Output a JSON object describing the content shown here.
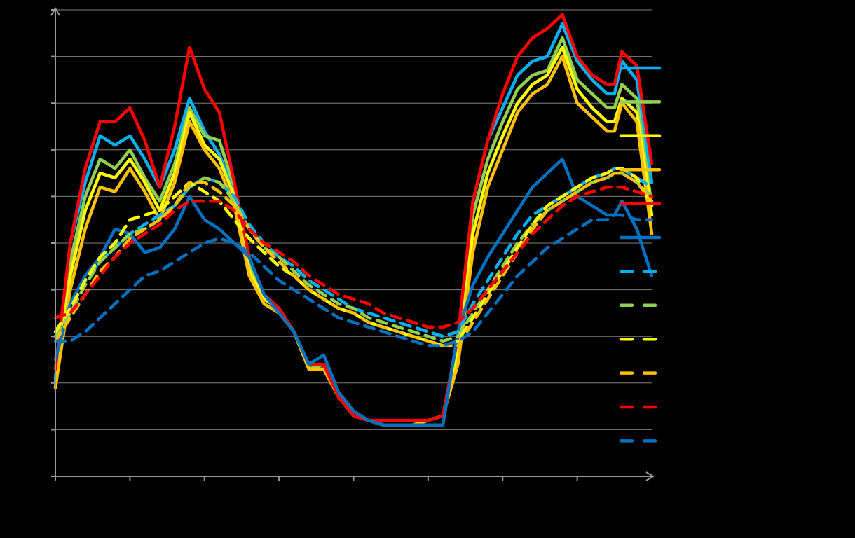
{
  "chart_data": {
    "type": "line",
    "title": "",
    "xlabel": "",
    "ylabel": "",
    "grid": true,
    "legend_position": "right",
    "x": [
      0,
      2,
      4,
      6,
      8,
      10,
      12,
      14,
      16,
      18,
      20,
      22,
      24,
      26,
      28,
      30,
      32,
      34,
      36,
      38,
      40,
      42,
      44,
      46,
      48,
      50,
      52,
      54,
      56,
      58,
      60,
      62,
      64,
      66,
      68,
      70,
      72,
      74,
      75,
      76,
      78,
      80
    ],
    "series": [
      {
        "color": "#00b0f0",
        "dash": false,
        "values": [
          2.1,
          5.0,
          6.3,
          7.3,
          7.1,
          7.3,
          6.8,
          6.2,
          7.0,
          8.1,
          7.4,
          6.9,
          6.1,
          4.6,
          3.8,
          3.6,
          3.1,
          2.4,
          2.4,
          1.7,
          1.3,
          1.2,
          1.1,
          1.1,
          1.1,
          1.2,
          1.3,
          3.0,
          5.9,
          7.2,
          7.9,
          8.6,
          8.9,
          9.0,
          9.7,
          8.9,
          8.5,
          8.2,
          8.2,
          8.9,
          8.5,
          6.3
        ]
      },
      {
        "color": "#92d050",
        "dash": false,
        "values": [
          2.0,
          4.6,
          6.0,
          6.8,
          6.6,
          7.0,
          6.4,
          5.9,
          6.7,
          7.9,
          7.3,
          7.2,
          6.2,
          4.5,
          3.8,
          3.6,
          3.1,
          2.3,
          2.4,
          1.7,
          1.3,
          1.2,
          1.1,
          1.1,
          1.1,
          1.2,
          1.3,
          2.8,
          5.6,
          6.8,
          7.6,
          8.3,
          8.6,
          8.7,
          9.4,
          8.5,
          8.2,
          7.9,
          7.9,
          8.4,
          8.1,
          5.8
        ]
      },
      {
        "color": "#ffff00",
        "dash": false,
        "values": [
          1.9,
          4.3,
          5.7,
          6.5,
          6.4,
          6.8,
          6.3,
          5.7,
          6.5,
          7.8,
          7.1,
          6.8,
          6.0,
          4.4,
          3.8,
          3.6,
          3.1,
          2.3,
          2.3,
          1.7,
          1.3,
          1.2,
          1.1,
          1.1,
          1.1,
          1.2,
          1.3,
          2.6,
          5.2,
          6.5,
          7.3,
          8.0,
          8.4,
          8.6,
          9.2,
          8.3,
          7.9,
          7.6,
          7.6,
          8.1,
          7.8,
          5.6
        ]
      },
      {
        "color": "#ffc000",
        "dash": false,
        "values": [
          1.9,
          4.0,
          5.3,
          6.2,
          6.1,
          6.6,
          6.1,
          5.5,
          6.3,
          7.6,
          7.0,
          6.6,
          5.8,
          4.3,
          3.7,
          3.5,
          3.1,
          2.3,
          2.3,
          1.7,
          1.3,
          1.2,
          1.1,
          1.1,
          1.1,
          1.2,
          1.3,
          2.4,
          4.8,
          6.2,
          7.0,
          7.8,
          8.2,
          8.4,
          9.0,
          8.0,
          7.7,
          7.4,
          7.4,
          8.0,
          7.6,
          5.2
        ]
      },
      {
        "color": "#ff0000",
        "dash": false,
        "values": [
          2.3,
          5.0,
          6.6,
          7.6,
          7.6,
          7.9,
          7.2,
          6.2,
          7.5,
          9.2,
          8.3,
          7.8,
          6.3,
          4.7,
          3.9,
          3.6,
          3.1,
          2.4,
          2.4,
          1.7,
          1.3,
          1.2,
          1.2,
          1.2,
          1.2,
          1.2,
          1.3,
          3.0,
          5.9,
          7.2,
          8.2,
          9.0,
          9.4,
          9.6,
          9.9,
          9.0,
          8.6,
          8.4,
          8.4,
          9.1,
          8.8,
          6.7
        ]
      },
      {
        "color": "#0070c0",
        "dash": false,
        "values": [
          2.5,
          3.7,
          4.3,
          4.7,
          5.3,
          5.2,
          4.8,
          4.9,
          5.3,
          6.0,
          5.5,
          5.3,
          5.0,
          4.7,
          3.9,
          3.5,
          3.1,
          2.4,
          2.6,
          1.8,
          1.4,
          1.2,
          1.1,
          1.1,
          1.1,
          1.1,
          1.1,
          3.1,
          4.1,
          4.7,
          5.2,
          5.7,
          6.2,
          6.5,
          6.8,
          6.0,
          5.8,
          5.6,
          5.6,
          5.9,
          5.3,
          4.3
        ]
      },
      {
        "color": "#00b0f0",
        "dash": true,
        "values": [
          3.1,
          3.6,
          4.2,
          4.6,
          4.9,
          5.2,
          5.4,
          5.6,
          5.8,
          6.2,
          6.4,
          6.3,
          6.0,
          5.4,
          5.0,
          4.7,
          4.5,
          4.2,
          4.0,
          3.8,
          3.6,
          3.5,
          3.4,
          3.3,
          3.2,
          3.1,
          3.0,
          3.1,
          3.7,
          4.2,
          4.7,
          5.2,
          5.6,
          5.8,
          6.0,
          6.2,
          6.4,
          6.5,
          6.6,
          6.6,
          6.4,
          6.2
        ]
      },
      {
        "color": "#92d050",
        "dash": true,
        "values": [
          3.0,
          3.5,
          4.1,
          4.6,
          4.9,
          5.2,
          5.3,
          5.5,
          5.8,
          6.2,
          6.4,
          6.3,
          5.9,
          5.3,
          4.9,
          4.7,
          4.4,
          4.1,
          3.9,
          3.7,
          3.6,
          3.4,
          3.3,
          3.2,
          3.1,
          3.0,
          2.9,
          3.0,
          3.5,
          4.0,
          4.5,
          5.0,
          5.4,
          5.7,
          5.9,
          6.1,
          6.3,
          6.4,
          6.5,
          6.5,
          6.3,
          6.0
        ]
      },
      {
        "color": "#ffff00",
        "dash": true,
        "values": [
          3.1,
          3.6,
          4.2,
          4.7,
          5.0,
          5.5,
          5.6,
          5.7,
          6.0,
          6.3,
          6.1,
          5.9,
          5.5,
          5.1,
          4.8,
          4.5,
          4.3,
          4.0,
          3.8,
          3.6,
          3.5,
          3.3,
          3.2,
          3.1,
          3.0,
          2.9,
          2.8,
          2.9,
          3.4,
          3.9,
          4.4,
          4.9,
          5.4,
          5.8,
          6.0,
          6.2,
          6.4,
          6.5,
          6.6,
          6.6,
          6.4,
          5.8
        ]
      },
      {
        "color": "#ffc000",
        "dash": true,
        "values": [
          2.9,
          3.4,
          3.9,
          4.4,
          4.7,
          5.1,
          5.3,
          5.5,
          5.8,
          6.3,
          6.3,
          6.1,
          5.8,
          5.3,
          4.9,
          4.6,
          4.3,
          4.0,
          3.8,
          3.6,
          3.5,
          3.3,
          3.2,
          3.1,
          3.0,
          2.9,
          2.8,
          2.8,
          3.3,
          3.8,
          4.3,
          4.8,
          5.3,
          5.7,
          5.9,
          6.1,
          6.3,
          6.4,
          6.5,
          6.5,
          6.3,
          5.9
        ]
      },
      {
        "color": "#ff0000",
        "dash": true,
        "values": [
          3.4,
          3.5,
          3.9,
          4.3,
          4.7,
          5.0,
          5.2,
          5.4,
          5.7,
          5.9,
          5.9,
          5.9,
          5.7,
          5.3,
          5.0,
          4.8,
          4.6,
          4.3,
          4.1,
          3.9,
          3.8,
          3.7,
          3.5,
          3.4,
          3.3,
          3.2,
          3.2,
          3.3,
          3.6,
          4.0,
          4.4,
          4.8,
          5.2,
          5.5,
          5.8,
          6.0,
          6.1,
          6.2,
          6.2,
          6.2,
          6.1,
          6.0
        ]
      },
      {
        "color": "#0070c0",
        "dash": true,
        "values": [
          2.9,
          2.9,
          3.1,
          3.4,
          3.7,
          4.0,
          4.3,
          4.4,
          4.6,
          4.8,
          5.0,
          5.1,
          5.0,
          4.8,
          4.5,
          4.2,
          4.0,
          3.8,
          3.6,
          3.4,
          3.3,
          3.2,
          3.1,
          3.0,
          2.9,
          2.8,
          2.8,
          2.9,
          3.1,
          3.5,
          3.9,
          4.3,
          4.6,
          4.9,
          5.1,
          5.3,
          5.5,
          5.5,
          5.6,
          5.6,
          5.5,
          5.5
        ]
      }
    ],
    "xlim": [
      0,
      80
    ],
    "ylim": [
      0,
      10
    ],
    "y_gridlines": [
      1,
      2,
      3,
      4,
      5,
      6,
      7,
      8,
      9,
      10
    ],
    "x_ticks": [
      0,
      10,
      20,
      30,
      40,
      50,
      60,
      70
    ]
  }
}
